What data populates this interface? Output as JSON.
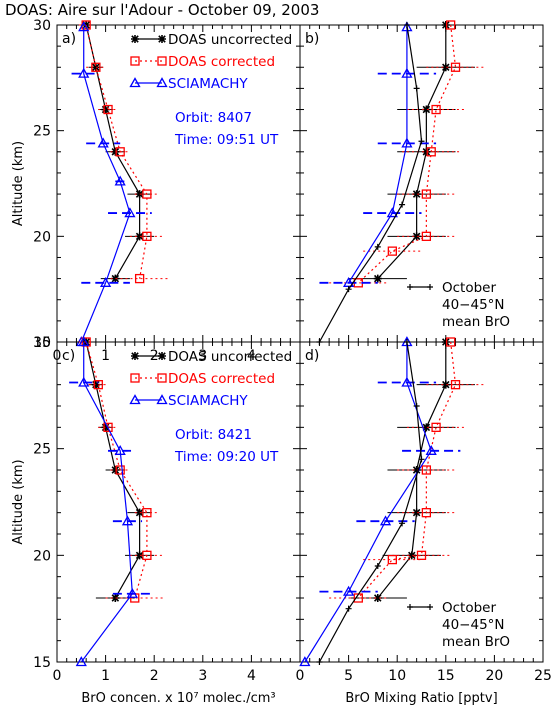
{
  "figure": {
    "title": "DOAS:  Aire sur l'Adour - October 09, 2003",
    "colors": {
      "doas_uncorrected": "#000000",
      "doas_corrected": "#ff0000",
      "sciamachy": "#0000ff"
    }
  },
  "chart_data": [
    {
      "type": "line",
      "panel": "a)",
      "ylabel": "Altitude (km)",
      "ylim": [
        15,
        30
      ],
      "xlim": [
        0,
        5
      ],
      "xticks": [
        "0",
        "1",
        "2",
        "3",
        "4"
      ],
      "yticks": [
        "15",
        "20",
        "25",
        "30"
      ],
      "legend": [
        "DOAS uncorrected",
        "DOAS corrected",
        "SCIAMACHY"
      ],
      "annotations": [
        "Orbit: 8407",
        "Time: 09:51 UT"
      ],
      "series": [
        {
          "name": "DOAS uncorrected",
          "points": [
            [
              0.6,
              30
            ],
            [
              0.8,
              28
            ],
            [
              1.0,
              26
            ],
            [
              1.2,
              24
            ],
            [
              1.7,
              22
            ],
            [
              1.7,
              20
            ],
            [
              1.2,
              18
            ]
          ],
          "err": [
            0,
            0.15,
            0.15,
            0.2,
            0.25,
            0.3,
            0.3
          ]
        },
        {
          "name": "DOAS corrected",
          "points": [
            [
              0.6,
              30
            ],
            [
              0.8,
              28
            ],
            [
              1.05,
              26
            ],
            [
              1.3,
              24
            ],
            [
              1.85,
              22
            ],
            [
              1.85,
              20
            ],
            [
              1.7,
              18
            ]
          ],
          "err": [
            0.15,
            0.2,
            0.2,
            0.2,
            0.25,
            0.35,
            0.6
          ]
        },
        {
          "name": "SCIAMACHY",
          "points": [
            [
              0.5,
              15
            ],
            [
              1.0,
              17.8
            ],
            [
              1.5,
              21.1
            ],
            [
              1.3,
              22.6
            ],
            [
              0.95,
              24.4
            ],
            [
              0.55,
              27.7
            ],
            [
              0.55,
              29.9
            ]
          ],
          "err": [
            0,
            0.5,
            0.45,
            0.1,
            0.35,
            0.25,
            0
          ]
        }
      ]
    },
    {
      "type": "line",
      "panel": "b)",
      "ylim": [
        15,
        30
      ],
      "xlim": [
        0,
        25
      ],
      "series": [
        {
          "name": "DOAS uncorrected",
          "points": [
            [
              15,
              30
            ],
            [
              15,
              28
            ],
            [
              13,
              26
            ],
            [
              13,
              24
            ],
            [
              12,
              22
            ],
            [
              12,
              20
            ],
            [
              8,
              18
            ]
          ],
          "err": [
            0,
            3,
            3,
            3,
            3,
            3,
            3
          ]
        },
        {
          "name": "DOAS corrected",
          "points": [
            [
              15.5,
              30
            ],
            [
              16,
              28
            ],
            [
              14,
              26
            ],
            [
              13.5,
              24
            ],
            [
              13,
              22
            ],
            [
              13,
              20
            ],
            [
              9.5,
              19.3
            ],
            [
              6,
              17.8
            ]
          ],
          "err": [
            0,
            3,
            3,
            3,
            3,
            3,
            3,
            3
          ]
        },
        {
          "name": "SCIAMACHY",
          "points": [
            [
              5,
              17.8
            ],
            [
              9.5,
              21.1
            ],
            [
              11,
              24.4
            ],
            [
              11,
              27.7
            ],
            [
              11,
              29.9
            ]
          ],
          "err": [
            3,
            3,
            3,
            3,
            0
          ]
        },
        {
          "name": "October 40-45°N mean BrO",
          "points": [
            [
              2,
              15
            ],
            [
              5,
              17.5
            ],
            [
              8,
              19.5
            ],
            [
              10.5,
              21.5
            ],
            [
              12.5,
              24.5
            ],
            [
              12,
              27
            ],
            [
              11,
              30
            ]
          ]
        }
      ],
      "annotations": [
        "October",
        "40−45°N",
        "mean BrO"
      ]
    },
    {
      "type": "line",
      "panel": "c)",
      "ylabel": "Altitude (km)",
      "xlabel": "BrO concen. x 10⁷ molec./cm³",
      "ylim": [
        15,
        30
      ],
      "xlim": [
        0,
        5
      ],
      "xticks": [
        "0",
        "1",
        "2",
        "3",
        "4"
      ],
      "yticks": [
        "15",
        "20",
        "25",
        "30"
      ],
      "legend": [
        "DOAS uncorrected",
        "DOAS corrected",
        "SCIAMACHY"
      ],
      "annotations": [
        "Orbit: 8421",
        "Time: 09:20 UT"
      ],
      "series": [
        {
          "name": "DOAS uncorrected",
          "points": [
            [
              0.6,
              30
            ],
            [
              0.8,
              28
            ],
            [
              1.0,
              26
            ],
            [
              1.2,
              24
            ],
            [
              1.7,
              22
            ],
            [
              1.7,
              20
            ],
            [
              1.2,
              18
            ]
          ],
          "err": [
            0,
            0.15,
            0.15,
            0.2,
            0.25,
            0.3,
            0.4
          ]
        },
        {
          "name": "DOAS corrected",
          "points": [
            [
              0.6,
              30
            ],
            [
              0.85,
              28
            ],
            [
              1.05,
              26
            ],
            [
              1.3,
              24
            ],
            [
              1.85,
              22
            ],
            [
              1.85,
              20
            ],
            [
              1.6,
              18
            ]
          ],
          "err": [
            0.15,
            0.2,
            0.2,
            0.2,
            0.25,
            0.35,
            0.6
          ]
        },
        {
          "name": "SCIAMACHY",
          "points": [
            [
              0.5,
              15
            ],
            [
              1.55,
              18.2
            ],
            [
              1.45,
              21.6
            ],
            [
              1.3,
              24.9
            ],
            [
              0.55,
              28.1
            ],
            [
              0.55,
              30
            ]
          ],
          "err": [
            0,
            0.4,
            0.3,
            0.25,
            0.3,
            0
          ]
        }
      ]
    },
    {
      "type": "line",
      "panel": "d)",
      "xlabel": "BrO Mixing Ratio [pptv]",
      "ylim": [
        15,
        30
      ],
      "xlim": [
        0,
        25
      ],
      "xticks": [
        "0",
        "5",
        "10",
        "15",
        "20",
        "25"
      ],
      "series": [
        {
          "name": "DOAS uncorrected",
          "points": [
            [
              15,
              30
            ],
            [
              15,
              28
            ],
            [
              13,
              26
            ],
            [
              12,
              24
            ],
            [
              12,
              22
            ],
            [
              11.5,
              20
            ],
            [
              8,
              18
            ]
          ],
          "err": [
            0,
            3,
            3,
            3,
            3,
            3,
            3
          ]
        },
        {
          "name": "DOAS corrected",
          "points": [
            [
              15.5,
              30
            ],
            [
              16,
              28
            ],
            [
              14,
              26
            ],
            [
              13,
              24
            ],
            [
              13,
              22
            ],
            [
              12.5,
              20
            ],
            [
              9.5,
              19.8
            ],
            [
              6,
              18
            ]
          ],
          "err": [
            0,
            3,
            3,
            3,
            3,
            3,
            3,
            3
          ]
        },
        {
          "name": "SCIAMACHY",
          "points": [
            [
              0.5,
              15
            ],
            [
              5,
              18.3
            ],
            [
              8.8,
              21.6
            ],
            [
              13.5,
              24.9
            ],
            [
              11,
              28.1
            ],
            [
              11,
              30
            ]
          ],
          "err": [
            0,
            3,
            3,
            3,
            3,
            0
          ]
        },
        {
          "name": "October 40-45°N mean BrO",
          "points": [
            [
              2,
              15
            ],
            [
              5,
              17.5
            ],
            [
              8,
              19.5
            ],
            [
              10.5,
              21.5
            ],
            [
              12.5,
              24.5
            ],
            [
              12,
              27
            ],
            [
              11,
              30
            ]
          ]
        }
      ],
      "annotations": [
        "October",
        "40−45°N",
        "mean BrO"
      ]
    }
  ]
}
